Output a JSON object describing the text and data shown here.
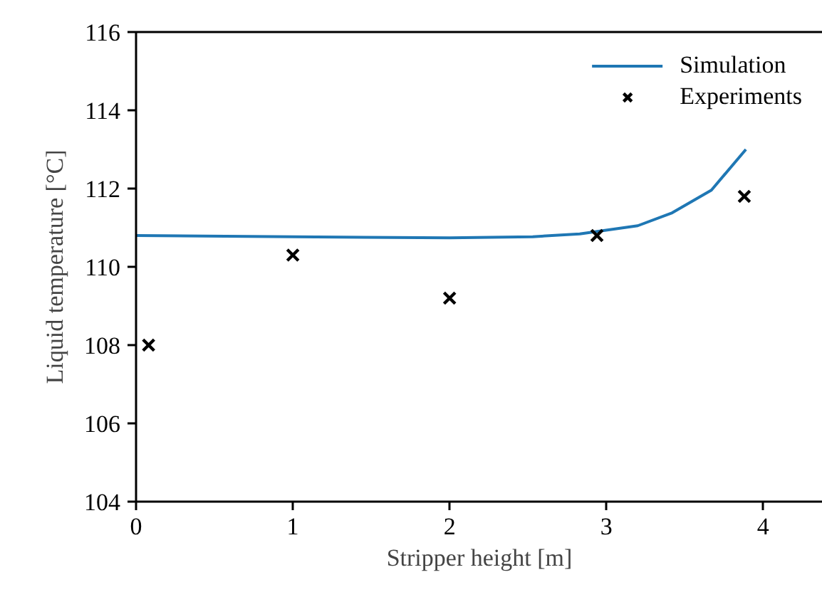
{
  "chart_data": {
    "type": "line",
    "xlabel": "Stripper height [m]",
    "ylabel": "Liquid temperature [°C]",
    "xlim": [
      0,
      4.38
    ],
    "xticks": [
      0,
      1,
      2,
      3,
      4
    ],
    "ylim": [
      104,
      116
    ],
    "yticks": [
      104,
      106,
      108,
      110,
      112,
      114,
      116
    ],
    "grid": false,
    "legend": "top right",
    "series": [
      {
        "name": "Simulation",
        "color": "#1f77b4",
        "marker": "none",
        "x": [
          0,
          1,
          2,
          2.53,
          2.83,
          3.2,
          3.42,
          3.67,
          3.89
        ],
        "values": [
          110.8,
          110.77,
          110.74,
          110.77,
          110.84,
          111.05,
          111.38,
          111.96,
          113.0
        ]
      },
      {
        "name": "Experiments",
        "type": "scatter",
        "color": "#000000",
        "marker": "cross",
        "x": [
          0.08,
          1.0,
          2.0,
          2.94,
          3.88
        ],
        "values": [
          108.0,
          110.3,
          109.2,
          110.8,
          111.8
        ]
      }
    ]
  }
}
